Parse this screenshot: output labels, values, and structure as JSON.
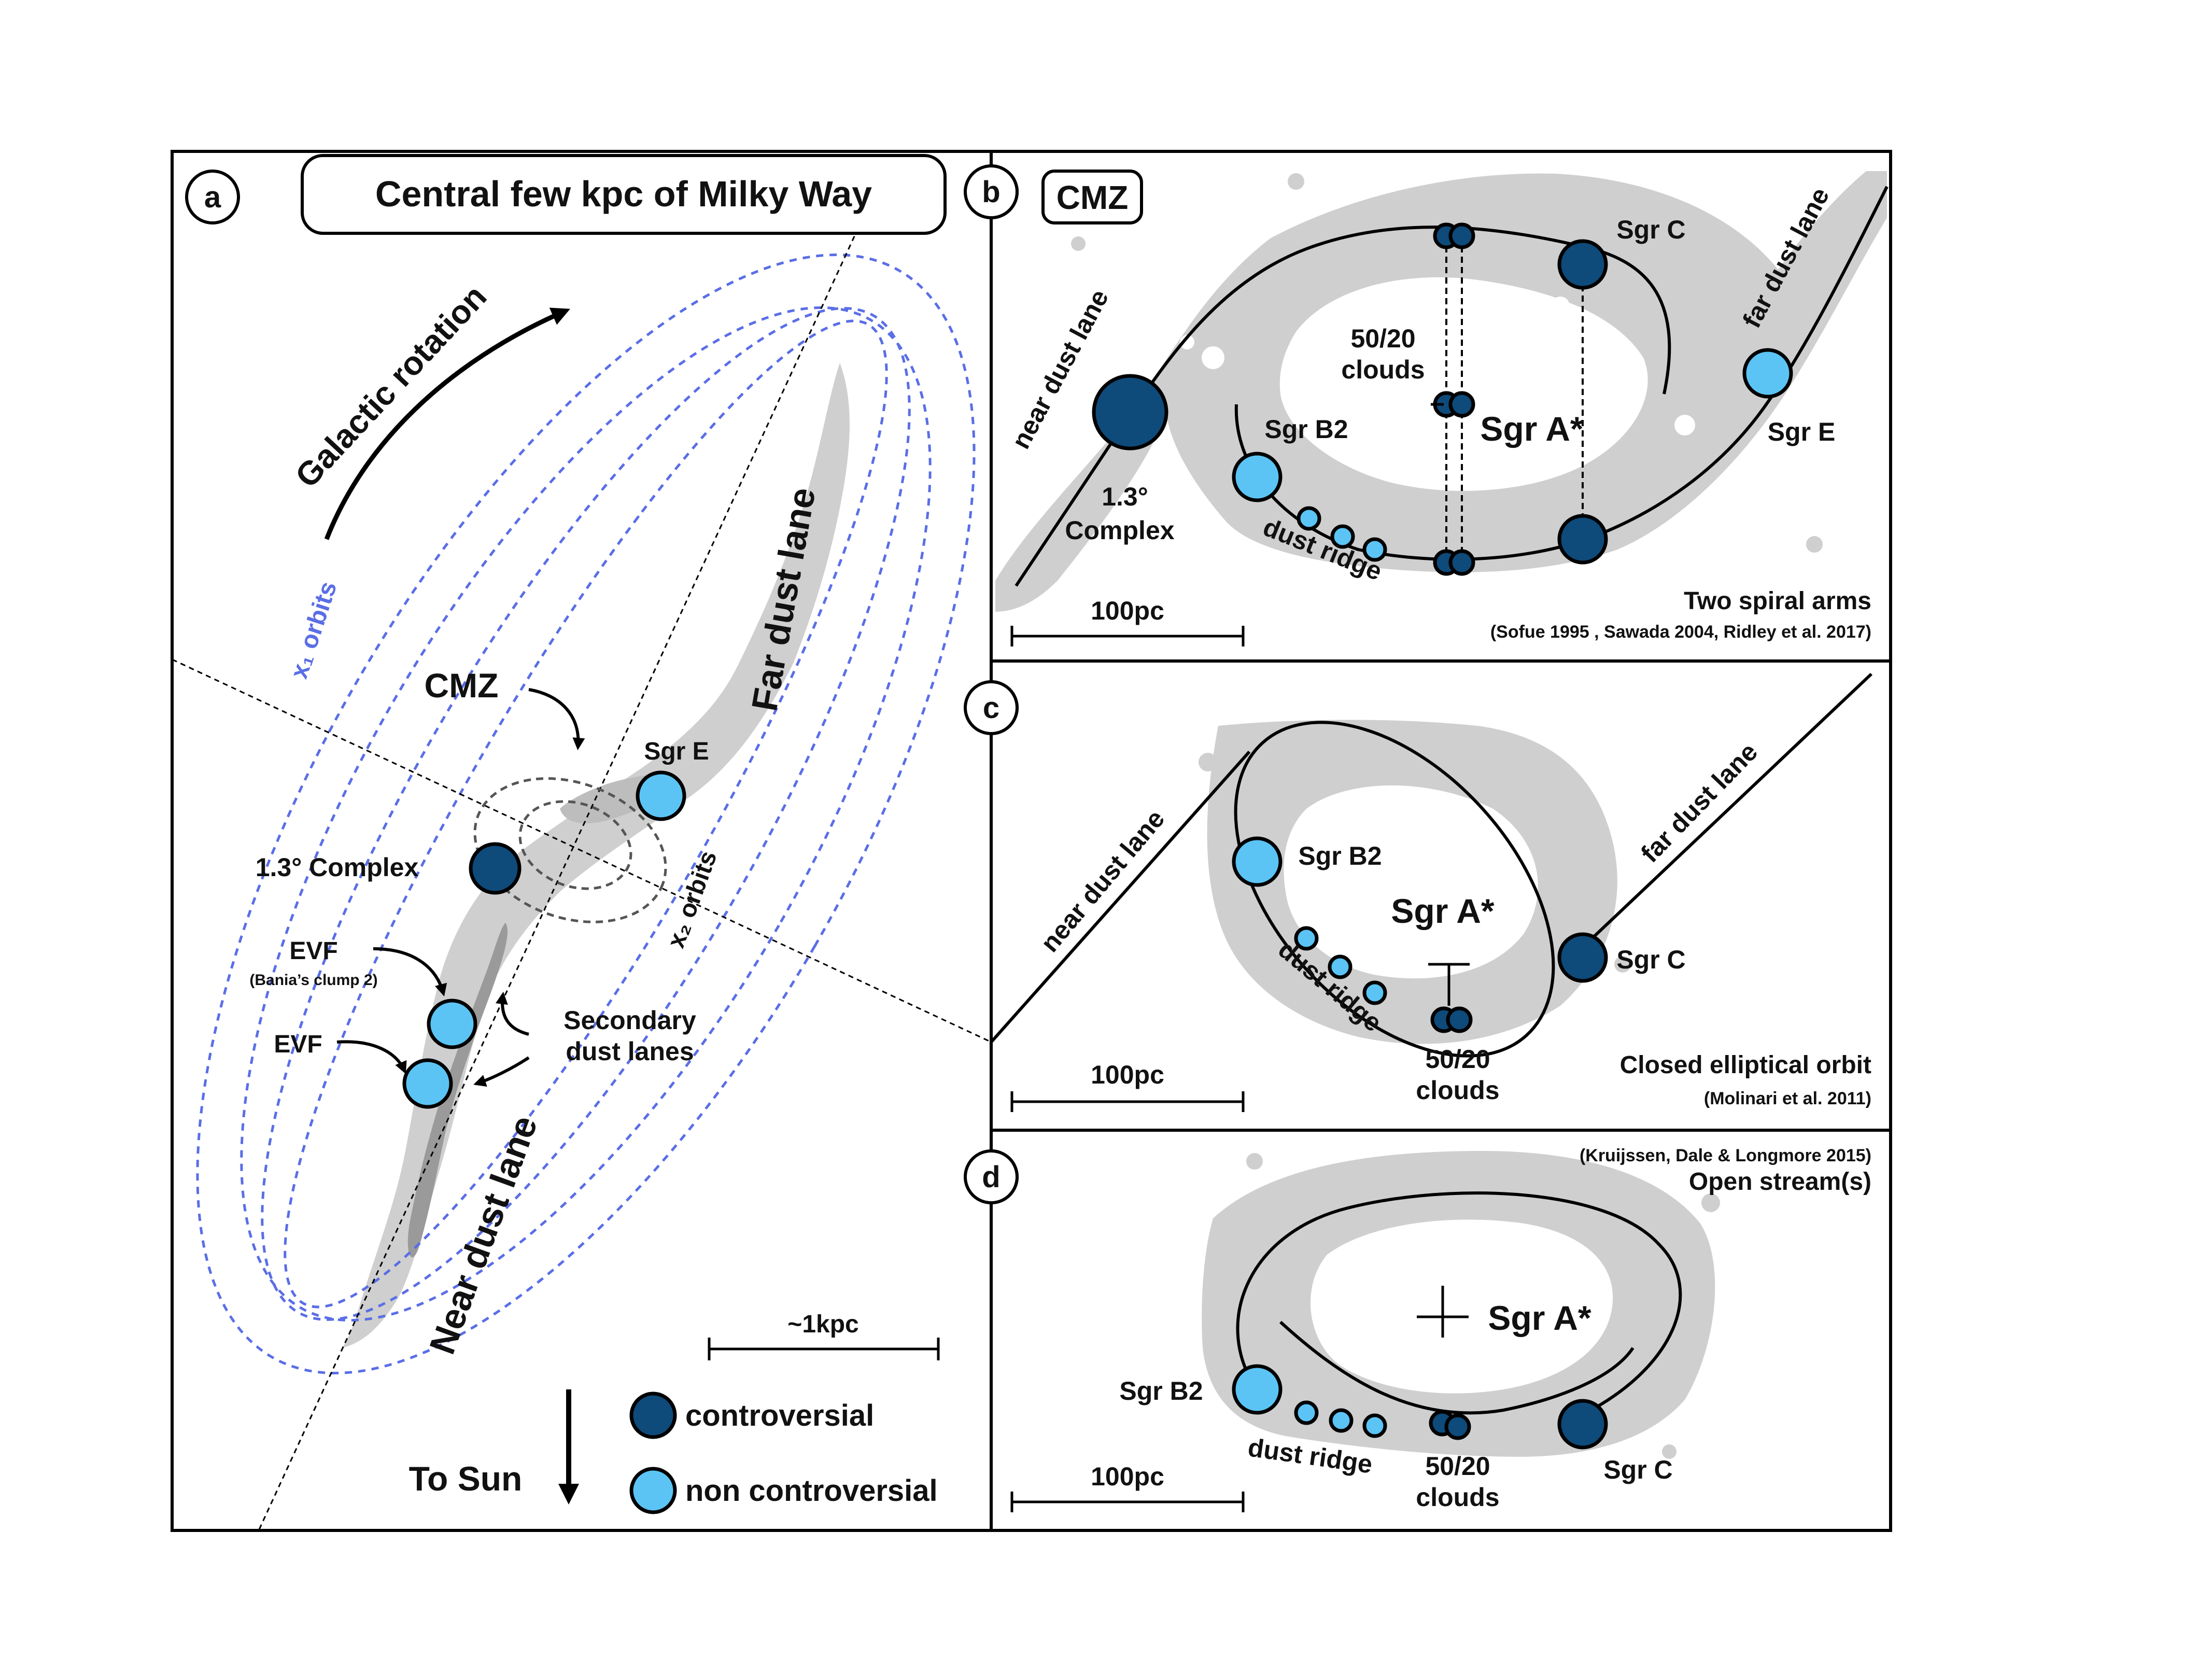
{
  "colors": {
    "controversial": "#0e4a7a",
    "non_controversial": "#5bc4f5",
    "cloud_gray": "#cfcfcf",
    "x1_orbits": "#5a6ee6"
  },
  "panel_a": {
    "letter": "a",
    "title": "Central few kpc of Milky Way",
    "galactic_rotation": "Galactic rotation",
    "x1_orbits": "x₁ orbits",
    "x2_orbits": "x₂ orbits",
    "cmz": "CMZ",
    "sgr_e": "Sgr E",
    "far_dust_lane": "Far dust lane",
    "near_dust_lane": "Near dust lane",
    "complex": "1.3° Complex",
    "evf1": "EVF",
    "evf1_sub": "(Bania’s clump 2)",
    "evf2": "EVF",
    "secondary1": "Secondary",
    "secondary2": "dust lanes",
    "scale": "~1kpc",
    "to_sun": "To Sun",
    "legend_controversial": "controversial",
    "legend_non": "non controversial"
  },
  "panel_b": {
    "letter": "b",
    "cmz": "CMZ",
    "near_dust_lane": "near dust lane",
    "far_dust_lane": "far dust lane",
    "sgr_c": "Sgr C",
    "sgr_e": "Sgr E",
    "sgr_b2": "Sgr B2",
    "sgr_a": "Sgr A*",
    "clouds1": "50/20",
    "clouds2": "clouds",
    "complex1": "1.3°",
    "complex2": "Complex",
    "dust_ridge": "dust ridge",
    "scale": "100pc",
    "model": "Two spiral arms",
    "refs": "(Sofue 1995 , Sawada 2004, Ridley et al. 2017)"
  },
  "panel_c": {
    "letter": "c",
    "near_dust_lane": "near dust lane",
    "far_dust_lane": "far dust lane",
    "sgr_b2": "Sgr B2",
    "sgr_a": "Sgr A*",
    "sgr_c": "Sgr C",
    "dust_ridge": "dust ridge",
    "clouds1": "50/20",
    "clouds2": "clouds",
    "scale": "100pc",
    "model": "Closed elliptical orbit",
    "refs": "(Molinari et al. 2011)"
  },
  "panel_d": {
    "letter": "d",
    "refs": "(Kruijssen, Dale & Longmore 2015)",
    "model": "Open stream(s)",
    "sgr_a": "Sgr A*",
    "sgr_b2": "Sgr B2",
    "dust_ridge": "dust ridge",
    "clouds1": "50/20",
    "clouds2": "clouds",
    "sgr_c": "Sgr C",
    "scale": "100pc"
  }
}
